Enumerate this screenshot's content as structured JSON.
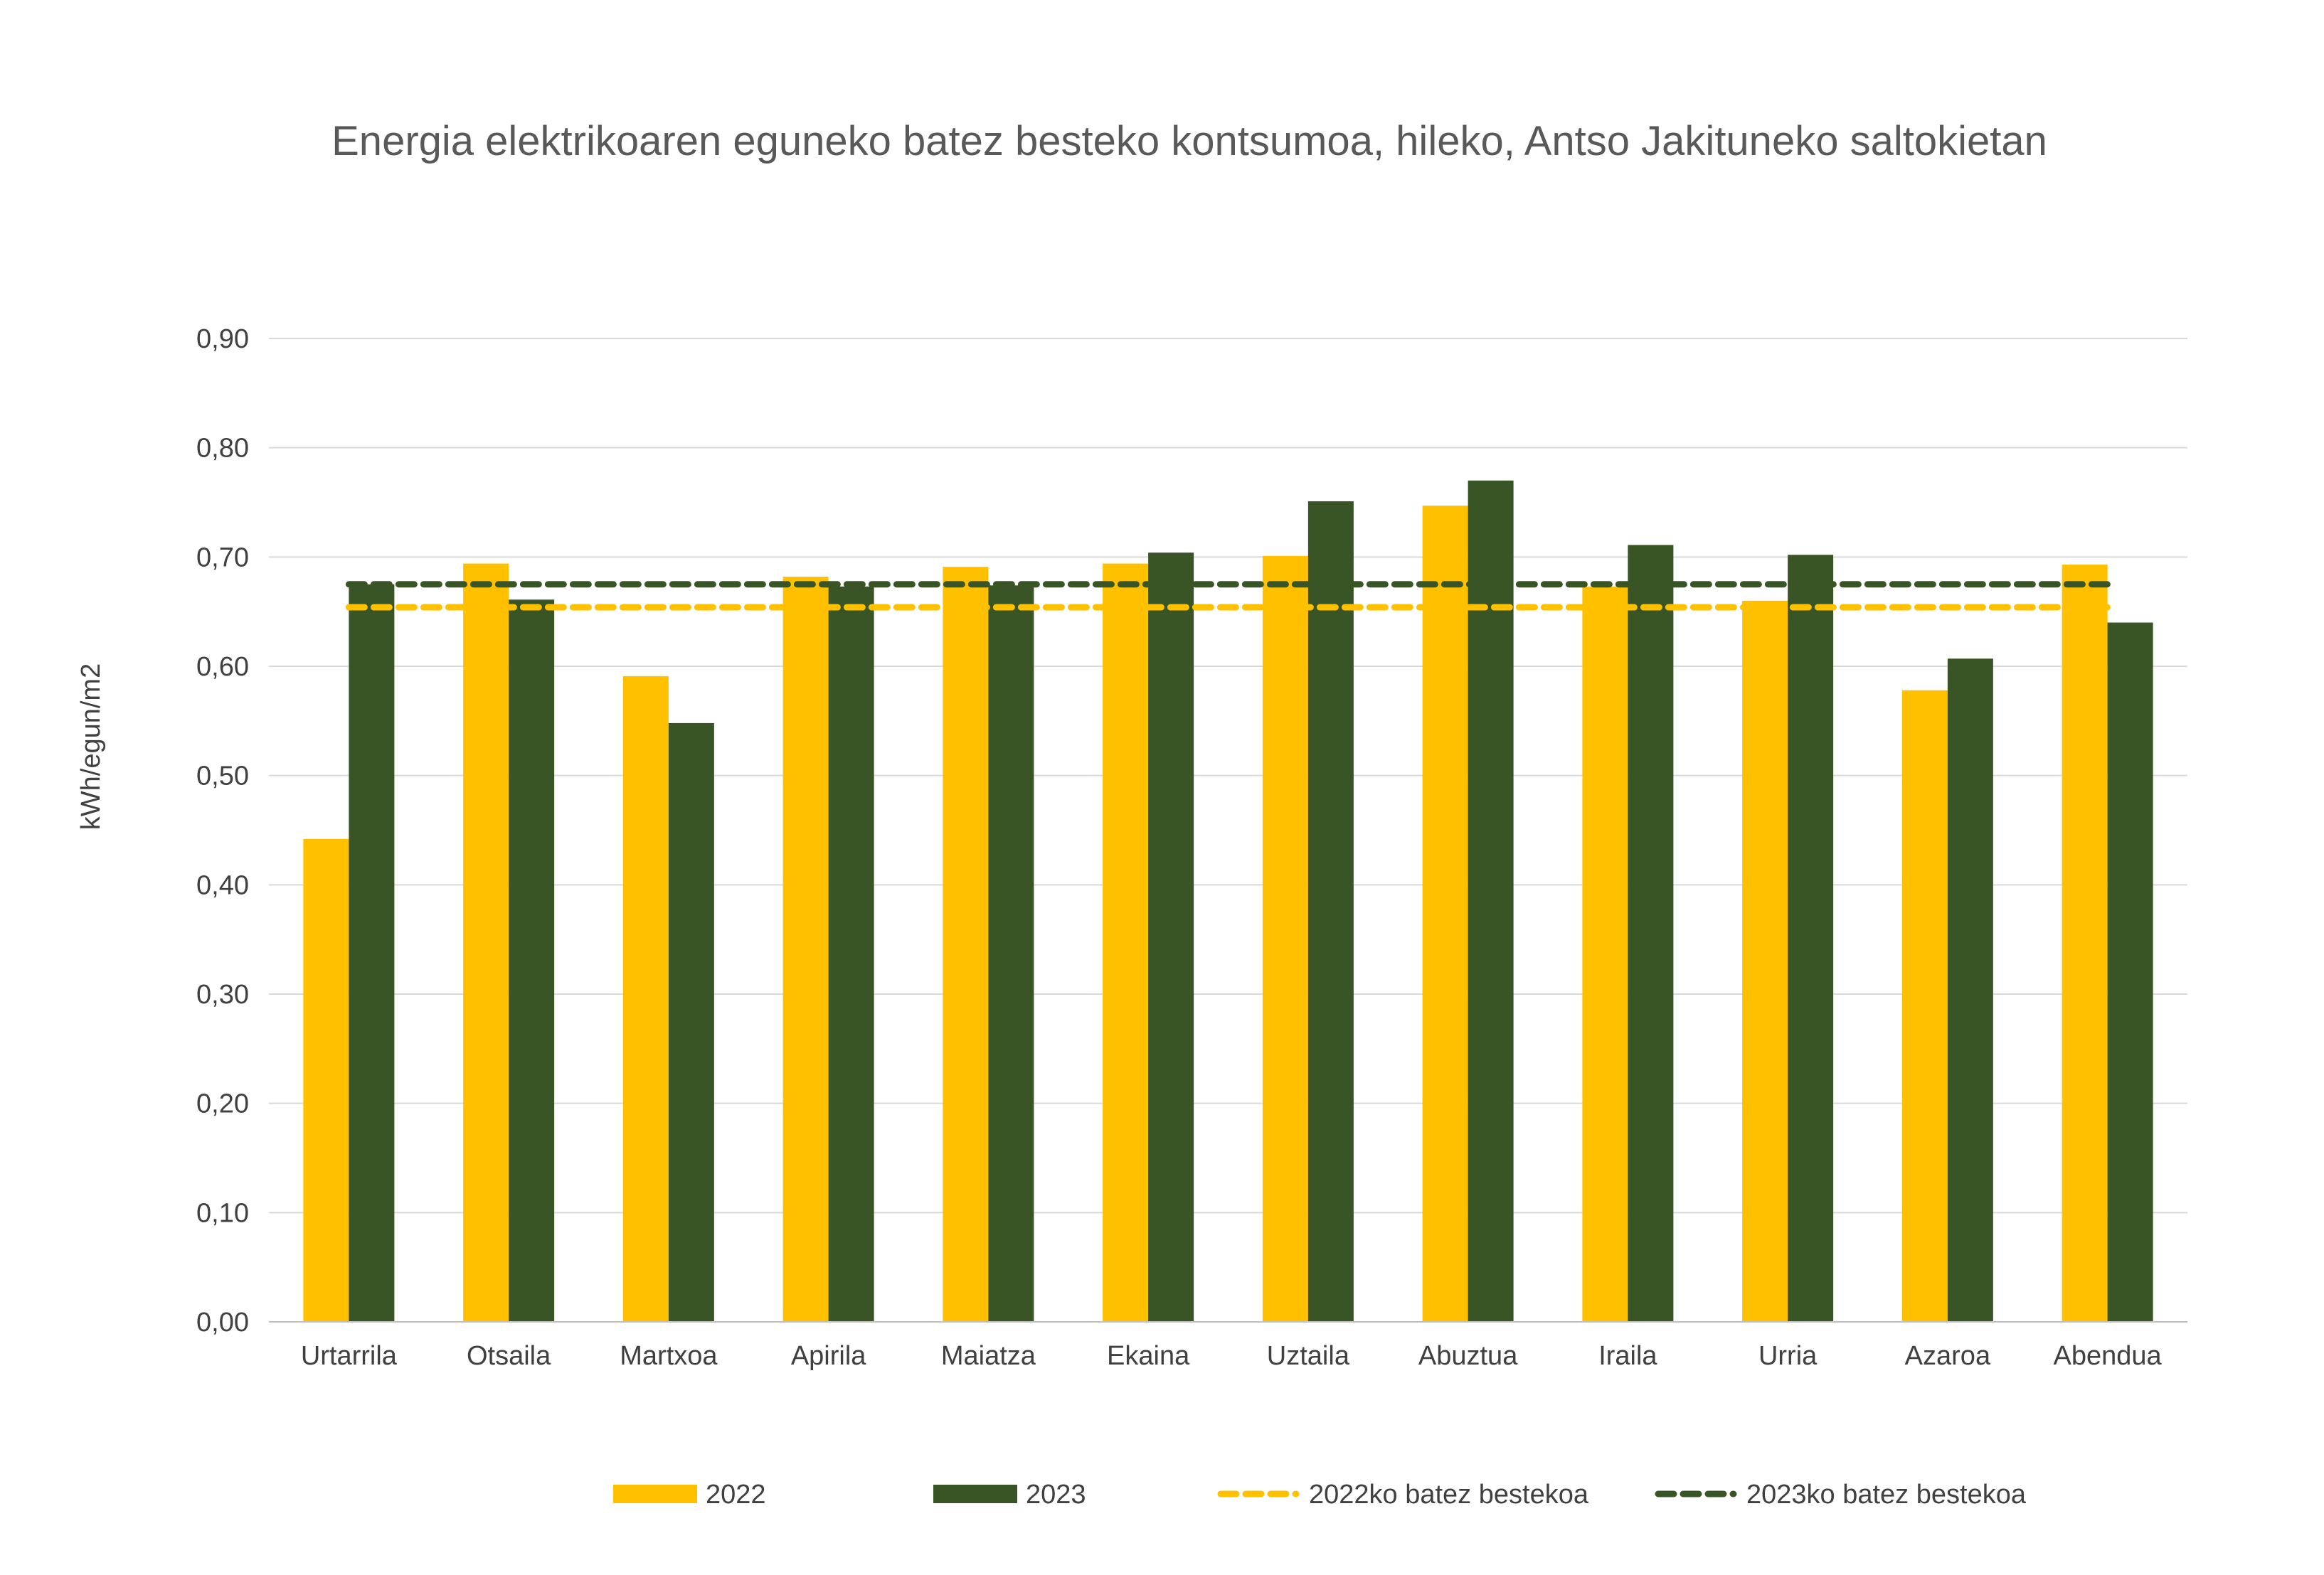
{
  "chart_data": {
    "type": "bar",
    "title": "Energia elektrikoaren eguneko batez besteko kontsumoa, hileko, Antso Jakituneko saltokietan",
    "xlabel": "",
    "ylabel": "kWh/egun/m2",
    "ylim": [
      0,
      0.9
    ],
    "yticks": [
      "0,00",
      "0,10",
      "0,20",
      "0,30",
      "0,40",
      "0,50",
      "0,60",
      "0,70",
      "0,80",
      "0,90"
    ],
    "grid": true,
    "legend_position": "bottom",
    "categories": [
      "Urtarrila",
      "Otsaila",
      "Martxoa",
      "Apirila",
      "Maiatza",
      "Ekaina",
      "Uztaila",
      "Abuztua",
      "Iraila",
      "Urria",
      "Azaroa",
      "Abendua"
    ],
    "series": [
      {
        "name": "2022",
        "kind": "bar",
        "color": "#FFC000",
        "values": [
          0.442,
          0.694,
          0.591,
          0.682,
          0.691,
          0.694,
          0.701,
          0.747,
          0.673,
          0.66,
          0.578,
          0.693
        ]
      },
      {
        "name": "2023",
        "kind": "bar",
        "color": "#3A5525",
        "values": [
          0.675,
          0.661,
          0.548,
          0.673,
          0.674,
          0.704,
          0.751,
          0.77,
          0.711,
          0.702,
          0.607,
          0.64
        ]
      },
      {
        "name": "2022ko batez bestekoa",
        "kind": "dashed-line",
        "color": "#FFC000",
        "value": 0.654
      },
      {
        "name": "2023ko batez bestekoa",
        "kind": "dashed-line",
        "color": "#3A5525",
        "value": 0.675
      }
    ]
  }
}
